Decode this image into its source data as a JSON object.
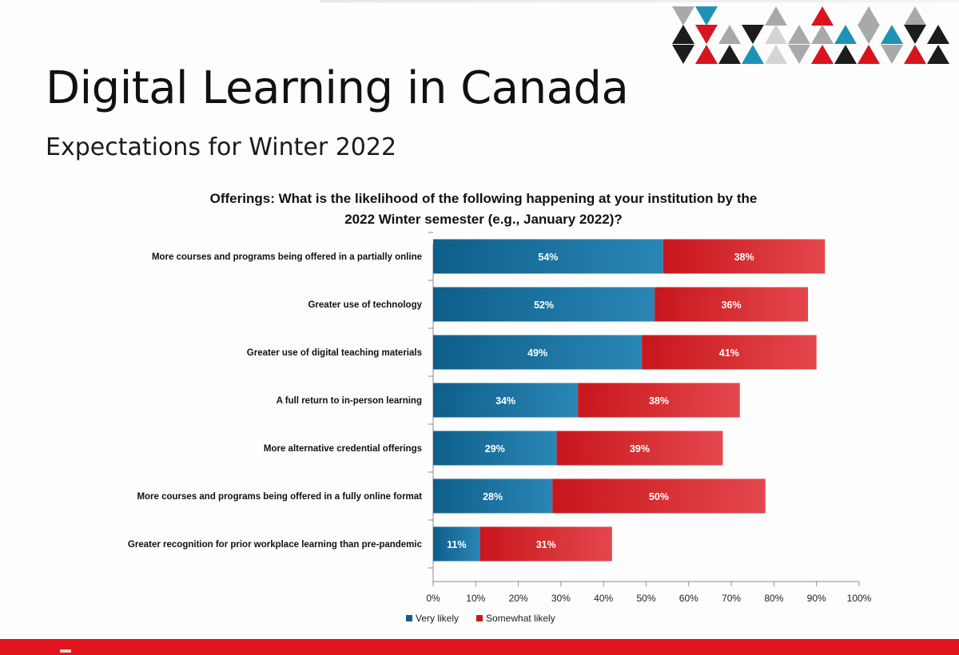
{
  "slide": {
    "title": "Digital Learning in Canada",
    "subtitle": "Expectations for Winter 2022"
  },
  "chart_data": {
    "type": "bar",
    "orientation": "horizontal",
    "stacked": true,
    "title_lines": [
      "Offerings: What is the likelihood of the following happening at your institution by the",
      "2022 Winter semester (e.g., January 2022)?"
    ],
    "categories": [
      "More courses and programs being offered in a partially online",
      "Greater use of technology",
      "Greater use of digital teaching materials",
      "A full return to in-person learning",
      "More alternative credential offerings",
      "More courses and programs being offered in a fully online format",
      "Greater recognition for prior workplace learning than pre-pandemic"
    ],
    "series": [
      {
        "name": "Very likely",
        "values": [
          54,
          52,
          49,
          34,
          29,
          28,
          11
        ],
        "color": "#0e5f8a"
      },
      {
        "name": "Somewhat likely",
        "values": [
          38,
          36,
          41,
          38,
          39,
          50,
          31
        ],
        "color": "#c8161d"
      }
    ],
    "xlim": [
      0,
      100
    ],
    "xticks": [
      "0%",
      "10%",
      "20%",
      "30%",
      "40%",
      "50%",
      "60%",
      "70%",
      "80%",
      "90%",
      "100%"
    ],
    "value_suffix": "%",
    "legend": "bottom-center",
    "grid": false
  },
  "colors": {
    "accent_red": "#e3141e",
    "blue_dark": "#0e5f8a",
    "blue_light": "#2a86b6",
    "red_dark": "#c8161d",
    "red_light": "#e4484c",
    "logo_black": "#1c1c1c",
    "logo_red": "#d7141f",
    "logo_blue": "#1f93b5",
    "logo_gray": "#a9a9a9"
  }
}
